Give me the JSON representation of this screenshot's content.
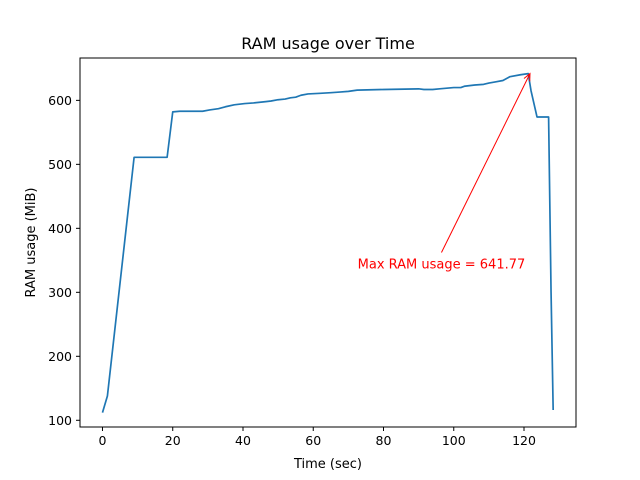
{
  "chart_data": {
    "type": "line",
    "title": "RAM usage over Time",
    "xlabel": "Time (sec)",
    "ylabel": "RAM usage (MiB)",
    "xlim": [
      -6.4,
      134.8
    ],
    "ylim": [
      89.5,
      666.2
    ],
    "xticks": [
      0,
      20,
      40,
      60,
      80,
      100,
      120
    ],
    "yticks": [
      100,
      200,
      300,
      400,
      500,
      600
    ],
    "grid": false,
    "series": [
      {
        "color": "#1f77b4",
        "x": [
          0,
          1.4,
          9,
          18.4,
          20,
          22,
          28.5,
          30.5,
          33,
          35,
          37.5,
          40.5,
          43,
          46.5,
          48,
          50,
          52,
          53.5,
          55,
          56.5,
          58.5,
          62,
          65,
          67.5,
          70,
          72.5,
          80,
          90,
          91.5,
          94,
          96,
          98,
          100,
          102,
          103,
          106,
          108.5,
          110,
          112,
          114,
          116,
          119,
          121.2,
          122,
          123.7,
          127,
          127.7,
          128.3
        ],
        "y": [
          112,
          138,
          511,
          511,
          582,
          583,
          583,
          585,
          587,
          590,
          593,
          595,
          596,
          598,
          599,
          601,
          602,
          604,
          605,
          608,
          610,
          611,
          612,
          613,
          614,
          616,
          617,
          618,
          617,
          617,
          618,
          619,
          620,
          620,
          622,
          624,
          625,
          627,
          629,
          631,
          637,
          640,
          641.77,
          615,
          574,
          574,
          300,
          116
        ]
      }
    ],
    "annotation": {
      "text": "Max RAM usage = 641.77",
      "color": "#ff0000",
      "point": [
        121.7,
        641.77
      ],
      "text_at": [
        96.5,
        345
      ]
    }
  }
}
